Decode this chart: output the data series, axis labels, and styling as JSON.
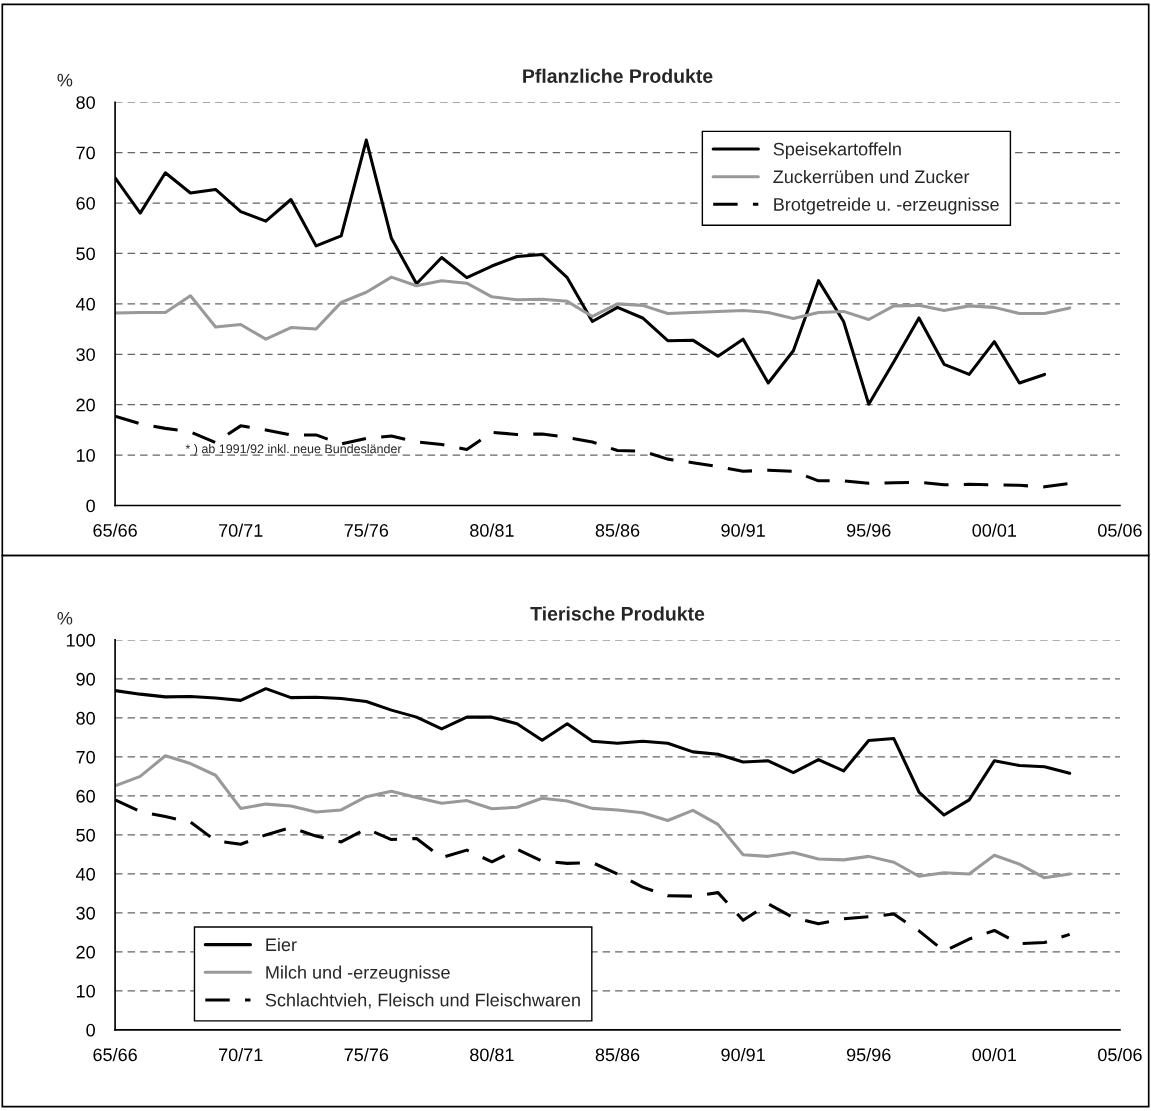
{
  "chart_data": [
    {
      "type": "line",
      "title": "Pflanzliche Produkte",
      "ylabel": "%",
      "categories": [
        "65/66",
        null,
        null,
        null,
        null,
        "70/71",
        null,
        null,
        null,
        null,
        "75/76",
        null,
        null,
        null,
        null,
        "80/81",
        null,
        null,
        null,
        null,
        "85/86",
        null,
        null,
        null,
        null,
        "90/91",
        null,
        null,
        null,
        null,
        "95/96",
        null,
        null,
        null,
        null,
        "00/01",
        null,
        null,
        null,
        null,
        "05/06"
      ],
      "ylim": [
        0,
        80
      ],
      "yticks": [
        0,
        10,
        20,
        30,
        40,
        50,
        60,
        70,
        80
      ],
      "grid": "y",
      "legend": "top right",
      "annotations": [
        "* ) ab 1991/92 inkl. neue Bundesländer"
      ],
      "series": [
        {
          "name": "Speisekartoffeln",
          "color": "#000000",
          "line_style": "solid",
          "values": [
            65,
            58,
            66,
            62,
            62.7,
            58.3,
            56.4,
            60.7,
            51.5,
            53.5,
            72.5,
            53,
            44,
            49.2,
            45.2,
            47.5,
            49.4,
            49.8,
            45.2,
            36.5,
            39.3,
            37.2,
            32.7,
            32.8,
            29.6,
            33,
            24.3,
            30.7,
            44.6,
            36.5,
            20.1,
            28.5,
            37.2,
            28,
            26,
            32.5,
            24.3,
            26,
            null,
            null,
            null
          ]
        },
        {
          "name": "Zuckerrüben und Zucker",
          "color": "#999999",
          "line_style": "solid",
          "values": [
            38.2,
            38.3,
            38.3,
            41.6,
            35.4,
            35.9,
            33,
            35.3,
            35,
            40.3,
            42.3,
            45.3,
            43.6,
            44.6,
            44.1,
            41.4,
            40.8,
            40.9,
            40.5,
            37.5,
            40,
            39.7,
            38.1,
            38.3,
            38.5,
            38.7,
            38.3,
            37.1,
            38.3,
            38.5,
            36.9,
            39.6,
            39.7,
            38.7,
            39.6,
            39.3,
            38.1,
            38.1,
            39.2,
            null,
            null
          ]
        },
        {
          "name": "Brotgetreide u. -erzeugnisse",
          "color": "#000000",
          "line_style": "dashed",
          "values": [
            17.7,
            16.2,
            15.3,
            14.6,
            12.5,
            15.8,
            15,
            14,
            14,
            12.2,
            13.3,
            13.8,
            12.6,
            12.1,
            11.1,
            14.5,
            14.1,
            14.2,
            13.5,
            12.6,
            10.9,
            10.8,
            9.2,
            8.5,
            7.7,
            6.8,
            7,
            6.8,
            4.9,
            4.9,
            4.4,
            4.5,
            4.6,
            4.1,
            4.2,
            4.1,
            4.0,
            3.7,
            4.4,
            null,
            null
          ]
        }
      ]
    },
    {
      "type": "line",
      "title": "Tierische Produkte",
      "ylabel": "%",
      "categories": [
        "65/66",
        null,
        null,
        null,
        null,
        "70/71",
        null,
        null,
        null,
        null,
        "75/76",
        null,
        null,
        null,
        null,
        "80/81",
        null,
        null,
        null,
        null,
        "85/86",
        null,
        null,
        null,
        null,
        "90/91",
        null,
        null,
        null,
        null,
        "95/96",
        null,
        null,
        null,
        null,
        "00/01",
        null,
        null,
        null,
        null,
        "05/06"
      ],
      "ylim": [
        0,
        100
      ],
      "yticks": [
        0,
        10,
        20,
        30,
        40,
        50,
        60,
        70,
        80,
        90,
        100
      ],
      "grid": "y",
      "legend": "bottom left",
      "series": [
        {
          "name": "Eier",
          "color": "#000000",
          "line_style": "solid",
          "values": [
            87,
            86.1,
            85.4,
            85.5,
            85.1,
            84.5,
            87.5,
            85.2,
            85.3,
            85,
            84.2,
            82,
            80.2,
            77.2,
            80.2,
            80.2,
            78.5,
            74.3,
            78.5,
            74,
            73.5,
            74,
            73.5,
            71.3,
            70.7,
            68.7,
            69,
            66,
            69.3,
            66.4,
            74.2,
            74.7,
            61,
            55.1,
            59,
            69,
            67.8,
            67.5,
            65.8,
            null,
            null
          ]
        },
        {
          "name": "Milch und -erzeugnisse",
          "color": "#999999",
          "line_style": "solid",
          "values": [
            62.6,
            65,
            70.3,
            68.3,
            65.3,
            56.8,
            57.9,
            57.4,
            55.9,
            56.4,
            59.8,
            61.2,
            59.6,
            58.1,
            58.8,
            56.7,
            57.1,
            59.4,
            58.7,
            56.8,
            56.4,
            55.7,
            53.7,
            56.3,
            52.7,
            44.9,
            44.5,
            45.5,
            43.8,
            43.6,
            44.5,
            43,
            39.4,
            40.3,
            40,
            44.8,
            42.5,
            39,
            40,
            null,
            null
          ]
        },
        {
          "name": "Schlachtvieh, Fleisch und Fleischwaren",
          "color": "#000000",
          "line_style": "dashed",
          "values": [
            59,
            56,
            54.7,
            53.3,
            48.5,
            47.6,
            50,
            51.9,
            49.7,
            48.2,
            51.6,
            48.8,
            49.1,
            44.2,
            46.1,
            43.1,
            46.3,
            43.3,
            42.7,
            42.9,
            40,
            36.6,
            34.4,
            34.3,
            35.2,
            28.1,
            32.3,
            28.8,
            27.2,
            28.5,
            29,
            29.7,
            25.4,
            20.2,
            23.3,
            25.5,
            22.1,
            22.4,
            24.5,
            null,
            null
          ]
        }
      ]
    }
  ]
}
